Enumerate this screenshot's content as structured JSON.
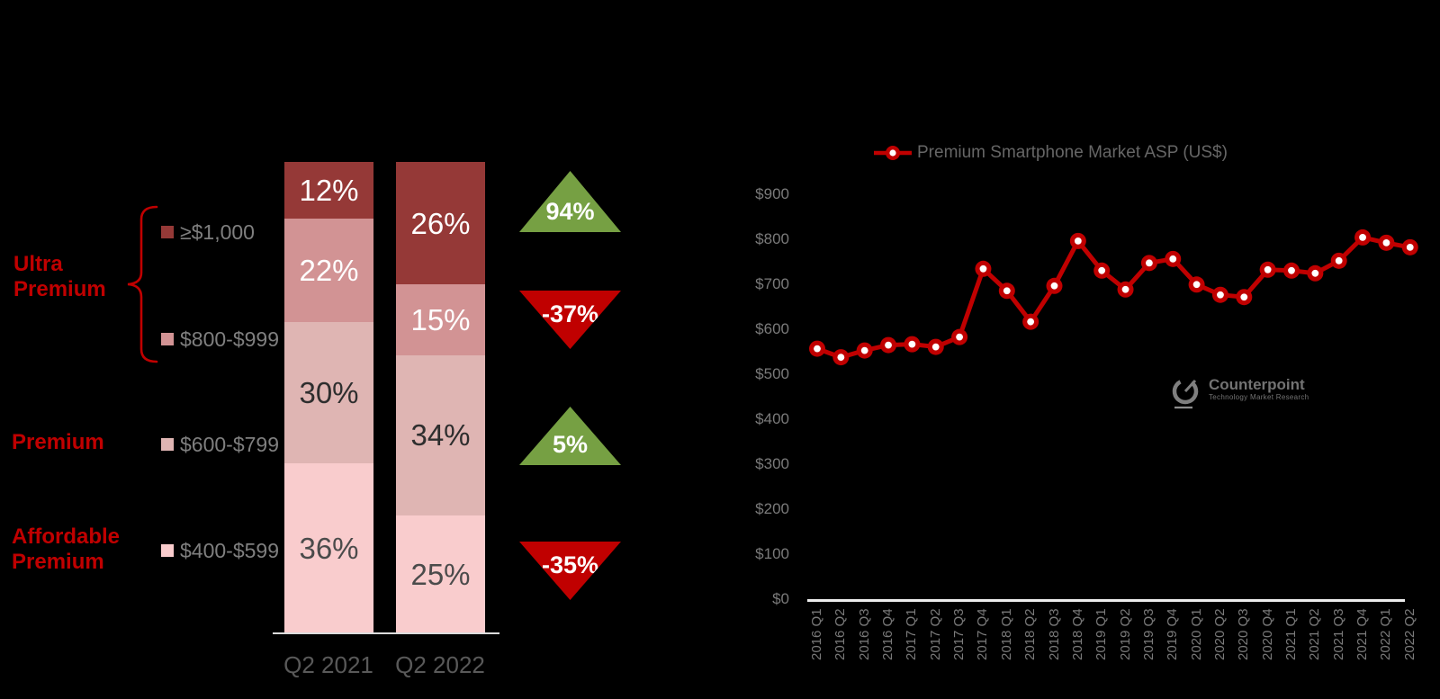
{
  "background_color": "#000000",
  "accent_red": "#C00000",
  "left_chart": {
    "group_labels": [
      {
        "text": "Ultra\nPremium"
      },
      {
        "text": "Premium"
      },
      {
        "text": "Affordable\nPremium"
      }
    ],
    "axis_categories": [
      "Q2 2021",
      "Q2 2022"
    ]
  },
  "right_chart": {
    "legend_label": "Premium Smartphone Market ASP (US$)"
  },
  "watermark": {
    "name": "Counterpoint",
    "tagline": "Technology Market Research"
  },
  "chart_data": [
    {
      "type": "bar",
      "subtype": "100%-stacked-column",
      "categories": [
        "Q2 2021",
        "Q2 2022"
      ],
      "value_suffix": "%",
      "series": [
        {
          "name": "≥$1,000",
          "group": "Ultra Premium",
          "values": [
            12,
            26
          ],
          "color": "#953937",
          "label_color": "#FFFFFF",
          "growth_label": "94%",
          "growth_direction": "up"
        },
        {
          "name": "$800-$999",
          "group": "Ultra Premium",
          "values": [
            22,
            15
          ],
          "color": "#D29394",
          "label_color": "#FFFFFF",
          "growth_label": "-37%",
          "growth_direction": "down"
        },
        {
          "name": "$600-$799",
          "group": "Premium",
          "values": [
            30,
            34
          ],
          "color": "#DFB5B3",
          "label_color": "#2E2E2E",
          "growth_label": "5%",
          "growth_direction": "up"
        },
        {
          "name": "$400-$599",
          "group": "Affordable Premium",
          "values": [
            36,
            25
          ],
          "color": "#F9CCCD",
          "label_color": "#4B4B4B",
          "growth_label": "-35%",
          "growth_direction": "down"
        }
      ],
      "up_color": "#76A043",
      "down_color": "#C00000",
      "legend_position": "left",
      "grid": false
    },
    {
      "type": "line",
      "legend": "Premium Smartphone Market ASP (US$)",
      "line_color": "#C00000",
      "marker": "open-circle",
      "grid": false,
      "ylim": [
        0,
        900
      ],
      "ytick_step": 100,
      "ytick_prefix": "$",
      "x": [
        "2016 Q1",
        "2016 Q2",
        "2016 Q3",
        "2016 Q4",
        "2017 Q1",
        "2017 Q2",
        "2017 Q3",
        "2017 Q4",
        "2018 Q1",
        "2018 Q2",
        "2018 Q3",
        "2018 Q4",
        "2019 Q1",
        "2019 Q2",
        "2019 Q3",
        "2019 Q4",
        "2020 Q1",
        "2020 Q2",
        "2020 Q3",
        "2020 Q4",
        "2021 Q1",
        "2021 Q2",
        "2021 Q3",
        "2021 Q4",
        "2022 Q1",
        "2022 Q2"
      ],
      "y": [
        557,
        538,
        553,
        565,
        567,
        561,
        583,
        735,
        686,
        617,
        697,
        797,
        731,
        689,
        748,
        757,
        700,
        677,
        672,
        733,
        731,
        725,
        753,
        805,
        793,
        783
      ]
    }
  ]
}
